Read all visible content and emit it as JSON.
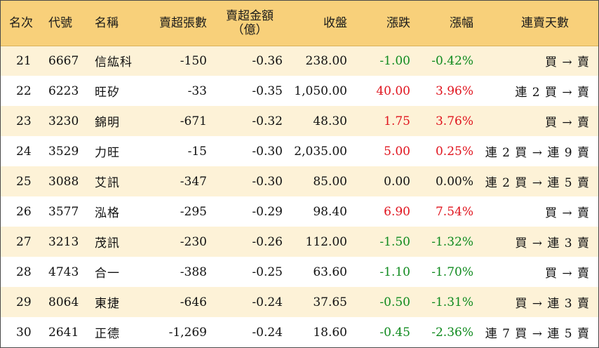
{
  "colors": {
    "header_bg": "#f8d07a",
    "row_odd_bg": "#fdf2d7",
    "row_even_bg": "#ffffff",
    "up": "#e0141e",
    "down": "#0f8a1e",
    "flat": "#111111"
  },
  "headers": {
    "rank": "名次",
    "code": "代號",
    "name": "名稱",
    "net_lots": "賣超張數",
    "net_amount_line1": "賣超金額",
    "net_amount_line2": "（億）",
    "close": "收盤",
    "change": "漲跌",
    "change_pct": "漲幅",
    "streak": "連賣天數"
  },
  "rows": [
    {
      "rank": "21",
      "code": "6667",
      "name": "信紘科",
      "net_lots": "-150",
      "net_amount": "-0.36",
      "close": "238.00",
      "change": "-1.00",
      "change_pct": "-0.42%",
      "direction": "down",
      "streak": "買 → 賣"
    },
    {
      "rank": "22",
      "code": "6223",
      "name": "旺矽",
      "net_lots": "-33",
      "net_amount": "-0.35",
      "close": "1,050.00",
      "change": "40.00",
      "change_pct": "3.96%",
      "direction": "up",
      "streak": "連 2 買 → 賣"
    },
    {
      "rank": "23",
      "code": "3230",
      "name": "錦明",
      "net_lots": "-671",
      "net_amount": "-0.32",
      "close": "48.30",
      "change": "1.75",
      "change_pct": "3.76%",
      "direction": "up",
      "streak": "買 → 賣"
    },
    {
      "rank": "24",
      "code": "3529",
      "name": "力旺",
      "net_lots": "-15",
      "net_amount": "-0.30",
      "close": "2,035.00",
      "change": "5.00",
      "change_pct": "0.25%",
      "direction": "up",
      "streak": "連 2 買 → 連 9 賣"
    },
    {
      "rank": "25",
      "code": "3088",
      "name": "艾訊",
      "net_lots": "-347",
      "net_amount": "-0.30",
      "close": "85.00",
      "change": "0.00",
      "change_pct": "0.00%",
      "direction": "flat",
      "streak": "連 2 買 → 連 5 賣"
    },
    {
      "rank": "26",
      "code": "3577",
      "name": "泓格",
      "net_lots": "-295",
      "net_amount": "-0.29",
      "close": "98.40",
      "change": "6.90",
      "change_pct": "7.54%",
      "direction": "up",
      "streak": "買 → 賣"
    },
    {
      "rank": "27",
      "code": "3213",
      "name": "茂訊",
      "net_lots": "-230",
      "net_amount": "-0.26",
      "close": "112.00",
      "change": "-1.50",
      "change_pct": "-1.32%",
      "direction": "down",
      "streak": "買 → 連 3 賣"
    },
    {
      "rank": "28",
      "code": "4743",
      "name": "合一",
      "net_lots": "-388",
      "net_amount": "-0.25",
      "close": "63.60",
      "change": "-1.10",
      "change_pct": "-1.70%",
      "direction": "down",
      "streak": "買 → 賣"
    },
    {
      "rank": "29",
      "code": "8064",
      "name": "東捷",
      "net_lots": "-646",
      "net_amount": "-0.24",
      "close": "37.65",
      "change": "-0.50",
      "change_pct": "-1.31%",
      "direction": "down",
      "streak": "買 → 連 3 賣"
    },
    {
      "rank": "30",
      "code": "2641",
      "name": "正德",
      "net_lots": "-1,269",
      "net_amount": "-0.24",
      "close": "18.60",
      "change": "-0.45",
      "change_pct": "-2.36%",
      "direction": "down",
      "streak": "連 7 買 → 連 5 賣"
    }
  ]
}
